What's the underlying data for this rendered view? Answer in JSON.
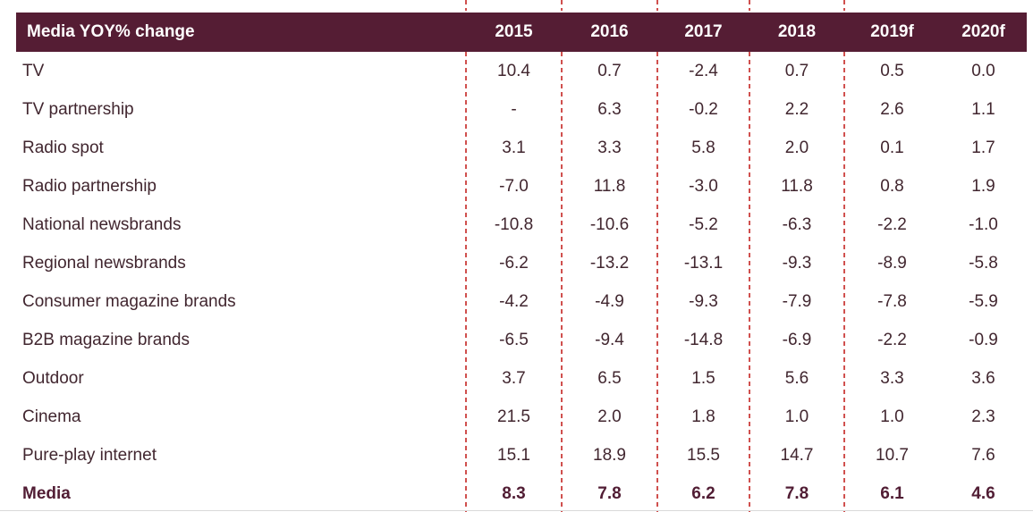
{
  "chart_data": {
    "type": "table",
    "title": "Media YOY% change",
    "columns": [
      "2015",
      "2016",
      "2017",
      "2018",
      "2019f",
      "2020f"
    ],
    "rows": [
      {
        "label": "TV",
        "values": [
          "10.4",
          "0.7",
          "-2.4",
          "0.7",
          "0.5",
          "0.0"
        ],
        "bold": false
      },
      {
        "label": "TV partnership",
        "values": [
          "-",
          "6.3",
          "-0.2",
          "2.2",
          "2.6",
          "1.1"
        ],
        "bold": false
      },
      {
        "label": "Radio spot",
        "values": [
          "3.1",
          "3.3",
          "5.8",
          "2.0",
          "0.1",
          "1.7"
        ],
        "bold": false
      },
      {
        "label": "Radio partnership",
        "values": [
          "-7.0",
          "11.8",
          "-3.0",
          "11.8",
          "0.8",
          "1.9"
        ],
        "bold": false
      },
      {
        "label": "National newsbrands",
        "values": [
          "-10.8",
          "-10.6",
          "-5.2",
          "-6.3",
          "-2.2",
          "-1.0"
        ],
        "bold": false
      },
      {
        "label": "Regional newsbrands",
        "values": [
          "-6.2",
          "-13.2",
          "-13.1",
          "-9.3",
          "-8.9",
          "-5.8"
        ],
        "bold": false
      },
      {
        "label": "Consumer magazine brands",
        "values": [
          "-4.2",
          "-4.9",
          "-9.3",
          "-7.9",
          "-7.8",
          "-5.9"
        ],
        "bold": false
      },
      {
        "label": "B2B magazine brands",
        "values": [
          "-6.5",
          "-9.4",
          "-14.8",
          "-6.9",
          "-2.2",
          "-0.9"
        ],
        "bold": false
      },
      {
        "label": "Outdoor",
        "values": [
          "3.7",
          "6.5",
          "1.5",
          "5.6",
          "3.3",
          "3.6"
        ],
        "bold": false
      },
      {
        "label": "Cinema",
        "values": [
          "21.5",
          "2.0",
          "1.8",
          "1.0",
          "1.0",
          "2.3"
        ],
        "bold": false
      },
      {
        "label": "Pure-play internet",
        "values": [
          "15.1",
          "18.9",
          "15.5",
          "14.7",
          "10.7",
          "7.6"
        ],
        "bold": false
      },
      {
        "label": "Media",
        "values": [
          "8.3",
          "7.8",
          "6.2",
          "7.8",
          "6.1",
          "4.6"
        ],
        "bold": true
      }
    ]
  },
  "colors": {
    "header_bg": "#551d34",
    "header_text": "#ffffff",
    "body_text": "#41262f",
    "bold_text": "#511d34",
    "divider_dash": "#d0504e",
    "bottom_rule": "#d9d9d9"
  }
}
